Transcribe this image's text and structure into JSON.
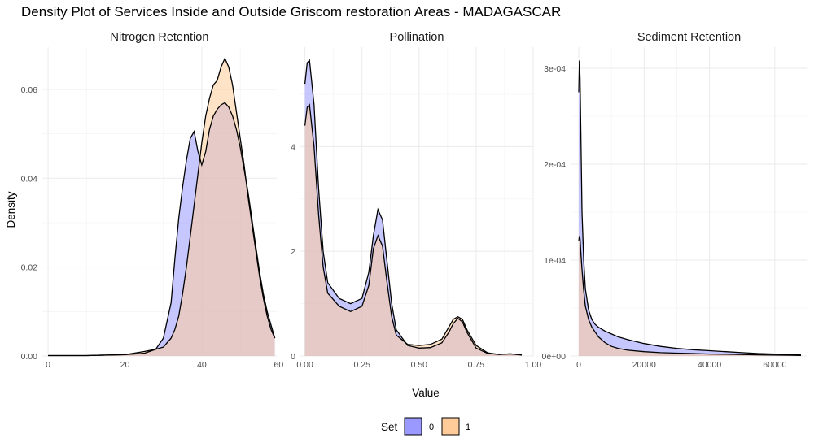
{
  "chart_data": {
    "type": "area",
    "title": "Density Plot of Services Inside and Outside Griscom restoration Areas - MADAGASCAR",
    "xlabel": "Value",
    "ylabel": "Density",
    "grid": true,
    "legend": {
      "title": "Set",
      "placement": "bottom",
      "entries": [
        {
          "label": "0",
          "color": "#9999ff"
        },
        {
          "label": "1",
          "color": "#ffcc99"
        }
      ]
    },
    "overlap_color": "#b38a95",
    "outline_color": "#000000",
    "panels": [
      {
        "name": "Nitrogen Retention",
        "xlim": [
          -1.5,
          59.5
        ],
        "ylim": [
          0,
          0.0695
        ],
        "x_ticks": [
          0,
          20,
          40,
          60
        ],
        "x_tick_labels": [
          "0",
          "20",
          "40",
          "60"
        ],
        "y_ticks": [
          0,
          0.02,
          0.04,
          0.06
        ],
        "y_tick_labels": [
          "0.00",
          "0.02",
          "0.04",
          "0.06"
        ],
        "series": [
          {
            "name": "0",
            "x": [
              0,
              5,
              10,
              15,
              20,
              25,
              28,
              30,
              32,
              33,
              34,
              35,
              36,
              37,
              38,
              39,
              40,
              41,
              42,
              43,
              44,
              45,
              46,
              47,
              48,
              49,
              50,
              51,
              52,
              53,
              54,
              55,
              56,
              57,
              58,
              59
            ],
            "y": [
              0.0001,
              0.0001,
              0.0001,
              0.0002,
              0.0003,
              0.0006,
              0.0015,
              0.004,
              0.012,
              0.022,
              0.031,
              0.038,
              0.044,
              0.049,
              0.0505,
              0.046,
              0.043,
              0.046,
              0.051,
              0.054,
              0.0555,
              0.0565,
              0.057,
              0.056,
              0.054,
              0.051,
              0.047,
              0.042,
              0.037,
              0.031,
              0.025,
              0.019,
              0.014,
              0.01,
              0.007,
              0.004
            ]
          },
          {
            "name": "1",
            "x": [
              0,
              5,
              10,
              15,
              20,
              25,
              28,
              30,
              32,
              33,
              34,
              35,
              36,
              37,
              38,
              39,
              40,
              41,
              42,
              43,
              44,
              45,
              46,
              47,
              48,
              49,
              50,
              51,
              52,
              53,
              54,
              55,
              56,
              57,
              58,
              59
            ],
            "y": [
              0.0001,
              0.0001,
              0.0001,
              0.0002,
              0.0003,
              0.001,
              0.0015,
              0.002,
              0.004,
              0.006,
              0.009,
              0.014,
              0.02,
              0.027,
              0.034,
              0.041,
              0.048,
              0.054,
              0.058,
              0.061,
              0.062,
              0.065,
              0.067,
              0.065,
              0.061,
              0.055,
              0.049,
              0.043,
              0.036,
              0.03,
              0.024,
              0.018,
              0.013,
              0.009,
              0.006,
              0.004
            ]
          }
        ]
      },
      {
        "name": "Pollination",
        "xlim": [
          -0.02,
          1.0
        ],
        "ylim": [
          0,
          5.9
        ],
        "x_ticks": [
          0,
          0.25,
          0.5,
          0.75,
          1.0
        ],
        "x_tick_labels": [
          "0.00",
          "0.25",
          "0.50",
          "0.75",
          "1.00"
        ],
        "y_ticks": [
          0,
          2,
          4
        ],
        "y_tick_labels": [
          "0",
          "2",
          "4"
        ],
        "series": [
          {
            "name": "0",
            "x": [
              0,
              0.01,
              0.02,
              0.04,
              0.06,
              0.08,
              0.1,
              0.15,
              0.2,
              0.25,
              0.28,
              0.3,
              0.32,
              0.34,
              0.36,
              0.38,
              0.4,
              0.45,
              0.5,
              0.55,
              0.6,
              0.63,
              0.65,
              0.67,
              0.69,
              0.71,
              0.75,
              0.8,
              0.85,
              0.9,
              0.95
            ],
            "y": [
              5.2,
              5.6,
              5.65,
              4.8,
              3.2,
              2.0,
              1.4,
              1.1,
              1.0,
              1.1,
              1.6,
              2.3,
              2.8,
              2.6,
              1.8,
              1.0,
              0.5,
              0.2,
              0.15,
              0.16,
              0.25,
              0.45,
              0.62,
              0.72,
              0.65,
              0.45,
              0.15,
              0.05,
              0.03,
              0.04,
              0.02
            ]
          },
          {
            "name": "1",
            "x": [
              0,
              0.01,
              0.02,
              0.04,
              0.06,
              0.08,
              0.1,
              0.15,
              0.2,
              0.25,
              0.28,
              0.3,
              0.32,
              0.34,
              0.36,
              0.38,
              0.4,
              0.45,
              0.5,
              0.55,
              0.6,
              0.63,
              0.65,
              0.67,
              0.69,
              0.71,
              0.75,
              0.8,
              0.85,
              0.9,
              0.95
            ],
            "y": [
              4.4,
              4.75,
              4.8,
              4.0,
              2.7,
              1.7,
              1.2,
              0.95,
              0.85,
              0.95,
              1.35,
              2.05,
              2.3,
              2.1,
              1.4,
              0.75,
              0.4,
              0.22,
              0.2,
              0.22,
              0.32,
              0.55,
              0.7,
              0.75,
              0.7,
              0.5,
              0.2,
              0.06,
              0.03,
              0.04,
              0.02
            ]
          }
        ]
      },
      {
        "name": "Sediment Retention",
        "xlim": [
          -2500,
          70000
        ],
        "ylim": [
          0,
          0.000322
        ],
        "x_ticks": [
          0,
          20000,
          40000,
          60000
        ],
        "x_tick_labels": [
          "0",
          "20000",
          "40000",
          "60000"
        ],
        "y_ticks": [
          0,
          0.0001,
          0.0002,
          0.0003
        ],
        "y_tick_labels": [
          "0e+00",
          "1e-04",
          "2e-04",
          "3e-04"
        ],
        "series": [
          {
            "name": "0",
            "x": [
              0,
              200,
              400,
              700,
              1000,
              1500,
              2000,
              3000,
              4000,
              5000,
              6000,
              8000,
              10000,
              12000,
              15000,
              20000,
              25000,
              30000,
              35000,
              40000,
              45000,
              50000,
              55000,
              60000,
              65000,
              68000
            ],
            "y": [
              0.000275,
              0.000308,
              0.00029,
              0.00022,
              0.00015,
              0.0001,
              7e-05,
              4.8e-05,
              3.8e-05,
              3.3e-05,
              3e-05,
              2.6e-05,
              2.3e-05,
              2e-05,
              1.7e-05,
              1.3e-05,
              1e-05,
              8e-06,
              6.5e-06,
              5.5e-06,
              4.5e-06,
              3.5e-06,
              2.5e-06,
              2e-06,
              1.5e-06,
              1e-06
            ]
          },
          {
            "name": "1",
            "x": [
              0,
              200,
              400,
              700,
              1000,
              1500,
              2000,
              3000,
              4000,
              5000,
              6000,
              8000,
              10000,
              12000,
              15000,
              20000,
              25000,
              30000,
              35000,
              40000,
              45000,
              50000,
              55000,
              60000,
              65000,
              68000
            ],
            "y": [
              0.00012,
              0.000125,
              0.000122,
              0.000105,
              9e-05,
              6.8e-05,
              5.2e-05,
              3.8e-05,
              3e-05,
              2.5e-05,
              2e-05,
              1.4e-05,
              1e-05,
              8e-06,
              6e-06,
              4.5e-06,
              3.5e-06,
              3e-06,
              2.5e-06,
              2e-06,
              1.8e-06,
              1.5e-06,
              1.2e-06,
              1e-06,
              8e-07,
              6e-07
            ]
          }
        ]
      }
    ]
  }
}
